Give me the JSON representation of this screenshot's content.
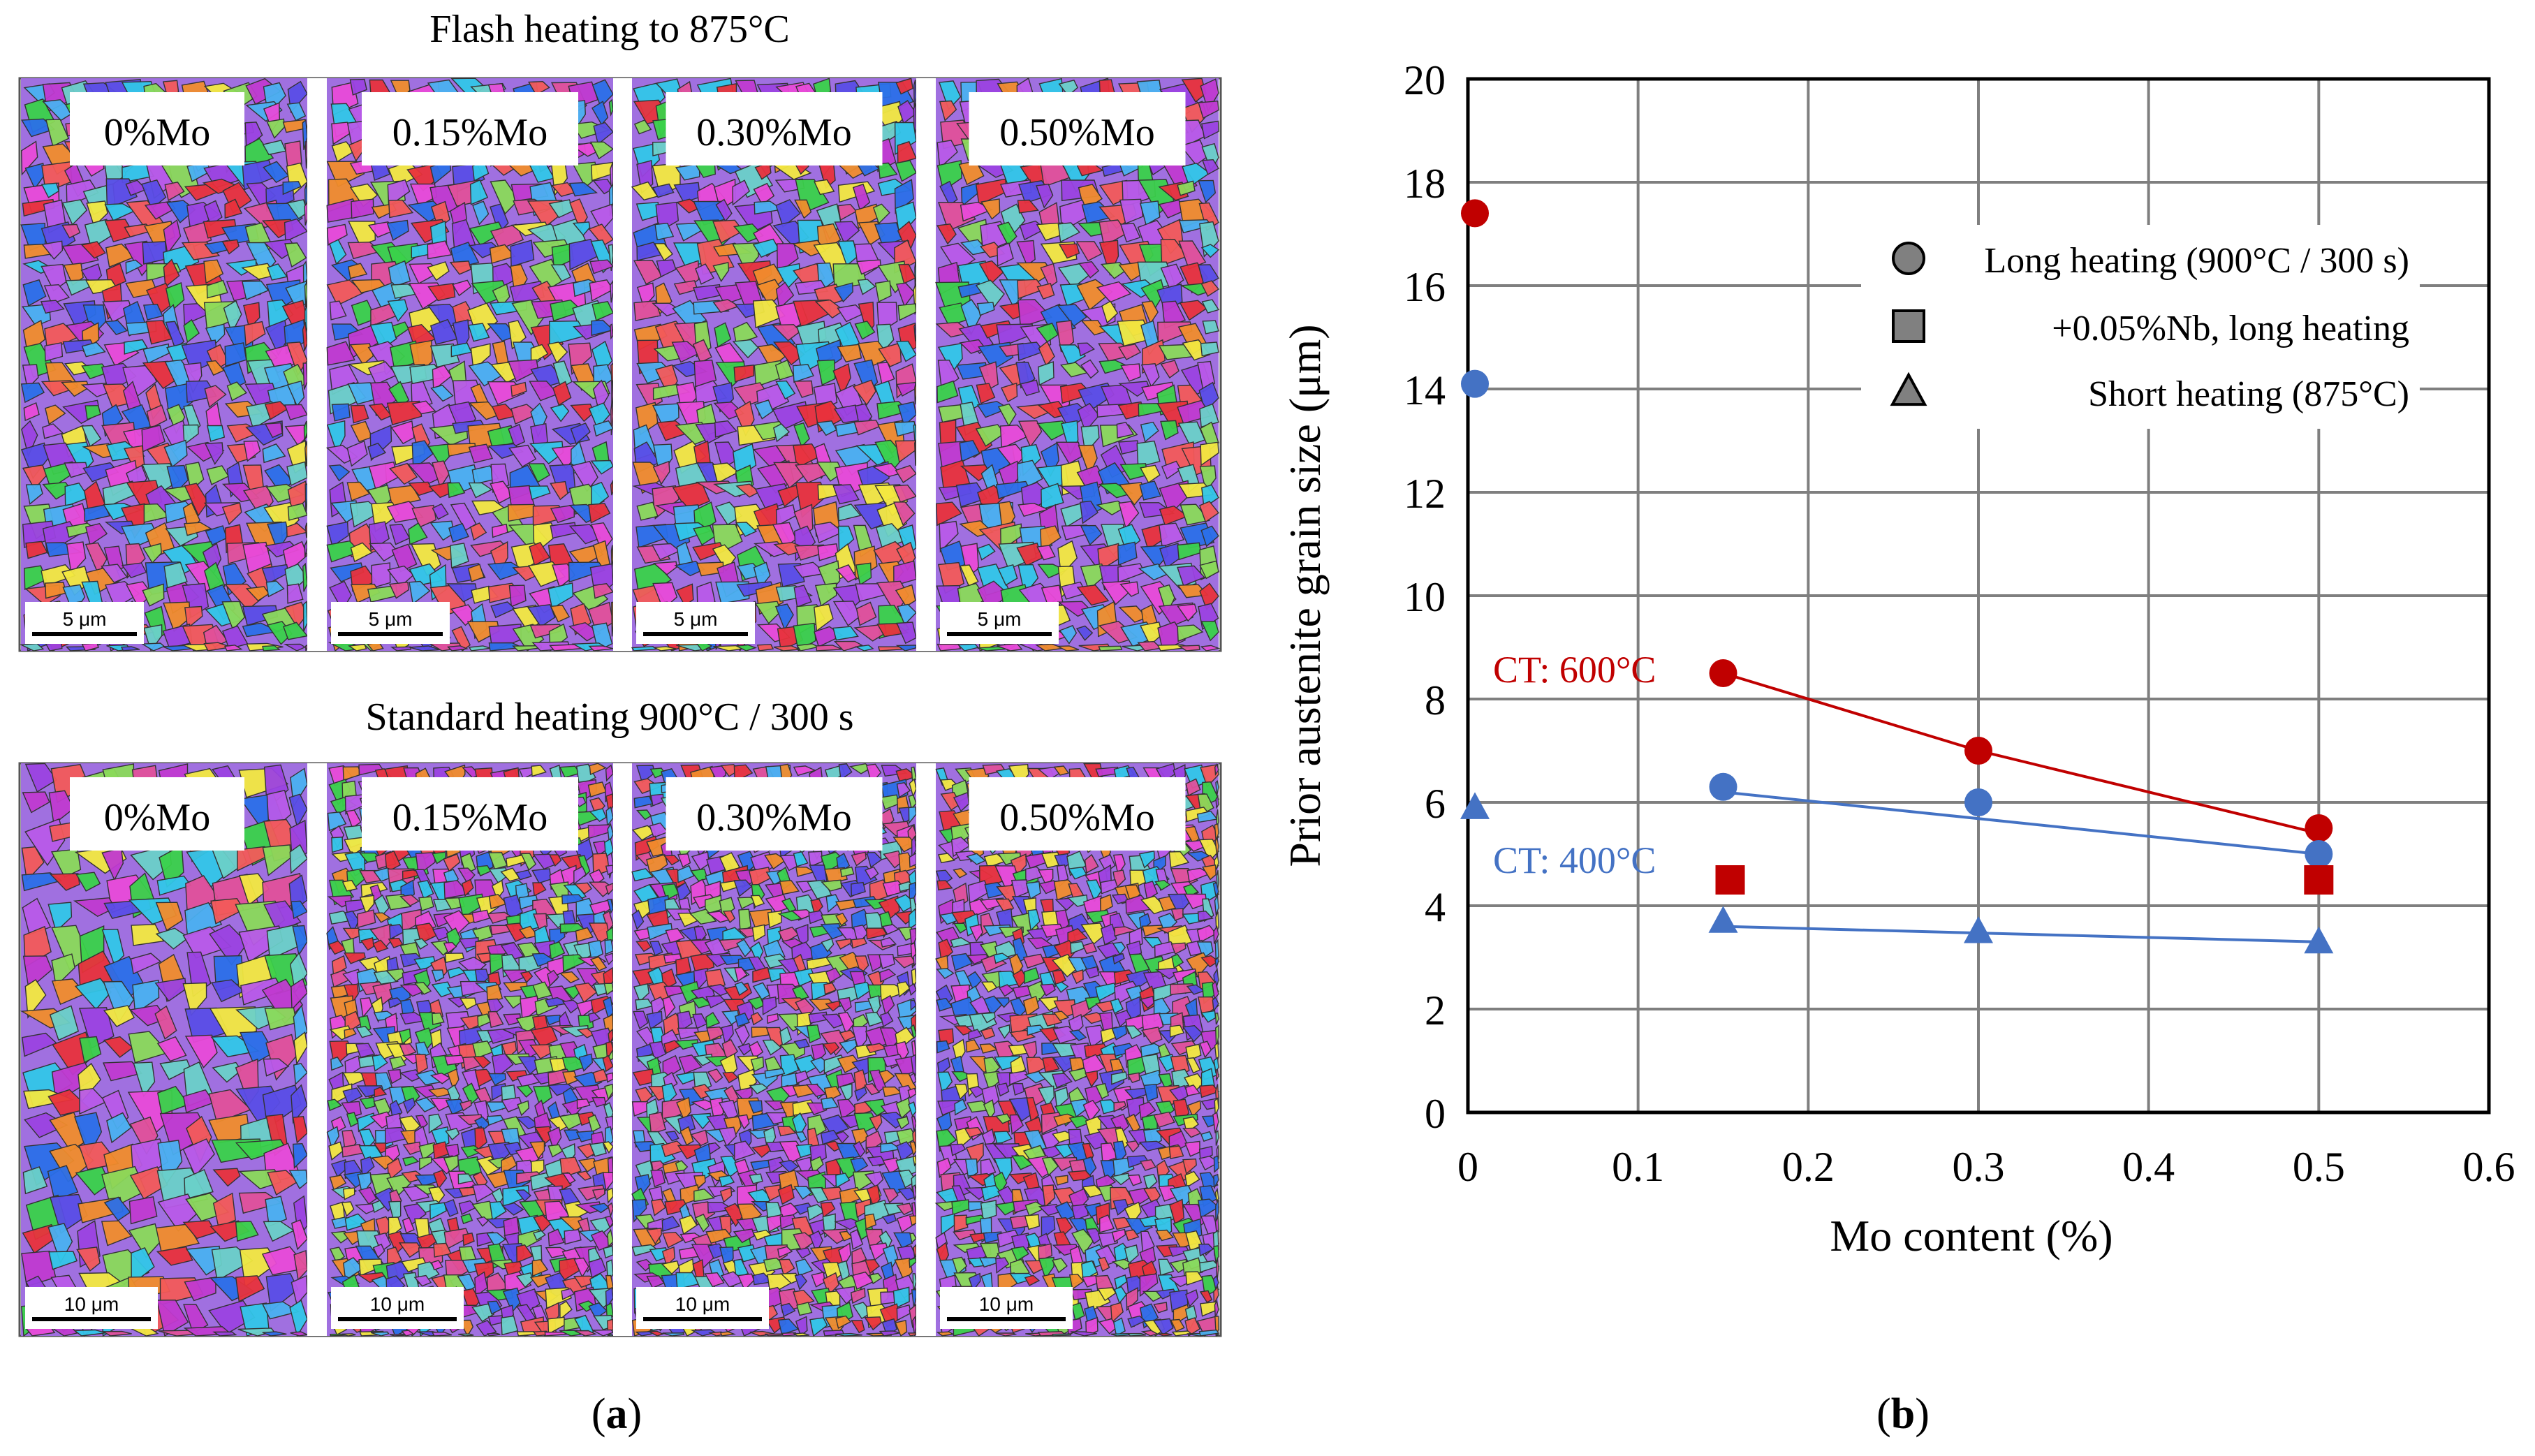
{
  "panel_a": {
    "caption": "a",
    "rows": [
      {
        "title": "Flash heating to 875°C",
        "scale_bar": "5 μm",
        "tiles": [
          "0%Mo",
          "0.15%Mo",
          "0.30%Mo",
          "0.50%Mo"
        ]
      },
      {
        "title": "Standard heating 900°C / 300 s",
        "scale_bar": "10 μm",
        "tiles": [
          "0%Mo",
          "0.15%Mo",
          "0.30%Mo",
          "0.50%Mo"
        ]
      }
    ],
    "image_kind": "EBSD orientation maps"
  },
  "panel_b": {
    "caption": "b"
  },
  "chart_data": {
    "type": "scatter",
    "title": "",
    "xlabel": "Mo content (%)",
    "ylabel": "Prior austenite grain size (μm)",
    "xlim": [
      0,
      0.6
    ],
    "ylim": [
      0,
      20
    ],
    "xticks": [
      0,
      0.1,
      0.2,
      0.3,
      0.4,
      0.5,
      0.6
    ],
    "xtick_labels": [
      "0",
      "0.1",
      "0.2",
      "0.3",
      "0.4",
      "0.5",
      "0.6"
    ],
    "yticks": [
      0,
      2,
      4,
      6,
      8,
      10,
      12,
      14,
      16,
      18,
      20
    ],
    "ytick_labels": [
      "0",
      "2",
      "4",
      "6",
      "8",
      "10",
      "12",
      "14",
      "16",
      "18",
      "20"
    ],
    "grid": true,
    "legend_position": "top-right",
    "legend": [
      {
        "marker": "circle",
        "label": "Long heating (900°C / 300 s)"
      },
      {
        "marker": "square",
        "label": "+0.05%Nb, long heating"
      },
      {
        "marker": "triangle",
        "label": "Short heating (875°C)"
      }
    ],
    "annotations": [
      {
        "text": "CT: 600°C",
        "color": "#c00000"
      },
      {
        "text": "CT: 400°C",
        "color": "#4472c4"
      }
    ],
    "series": [
      {
        "name": "CT 600°C, long heating",
        "marker": "circle",
        "color": "#c00000",
        "x": [
          0.0,
          0.15,
          0.3,
          0.5
        ],
        "y": [
          17.4,
          8.5,
          7.0,
          5.5
        ],
        "trend_x": [
          0.15,
          0.3,
          0.5
        ],
        "trend_y": [
          8.5,
          7.0,
          5.4
        ]
      },
      {
        "name": "CT 400°C, long heating",
        "marker": "circle",
        "color": "#4472c4",
        "x": [
          0.0,
          0.15,
          0.3,
          0.5
        ],
        "y": [
          14.1,
          6.3,
          6.0,
          5.0
        ],
        "trend_x": [
          0.15,
          0.5
        ],
        "trend_y": [
          6.2,
          5.0
        ]
      },
      {
        "name": "CT 600°C, +0.05%Nb long heating",
        "marker": "square",
        "color": "#c00000",
        "x": [
          0.15,
          0.5
        ],
        "y": [
          4.5,
          4.5
        ]
      },
      {
        "name": "CT 400°C, short heating",
        "marker": "triangle",
        "color": "#4472c4",
        "x": [
          0.0,
          0.15,
          0.3,
          0.5
        ],
        "y": [
          5.9,
          3.7,
          3.5,
          3.3
        ],
        "trend_x": [
          0.15,
          0.5
        ],
        "trend_y": [
          3.6,
          3.3
        ]
      }
    ]
  }
}
